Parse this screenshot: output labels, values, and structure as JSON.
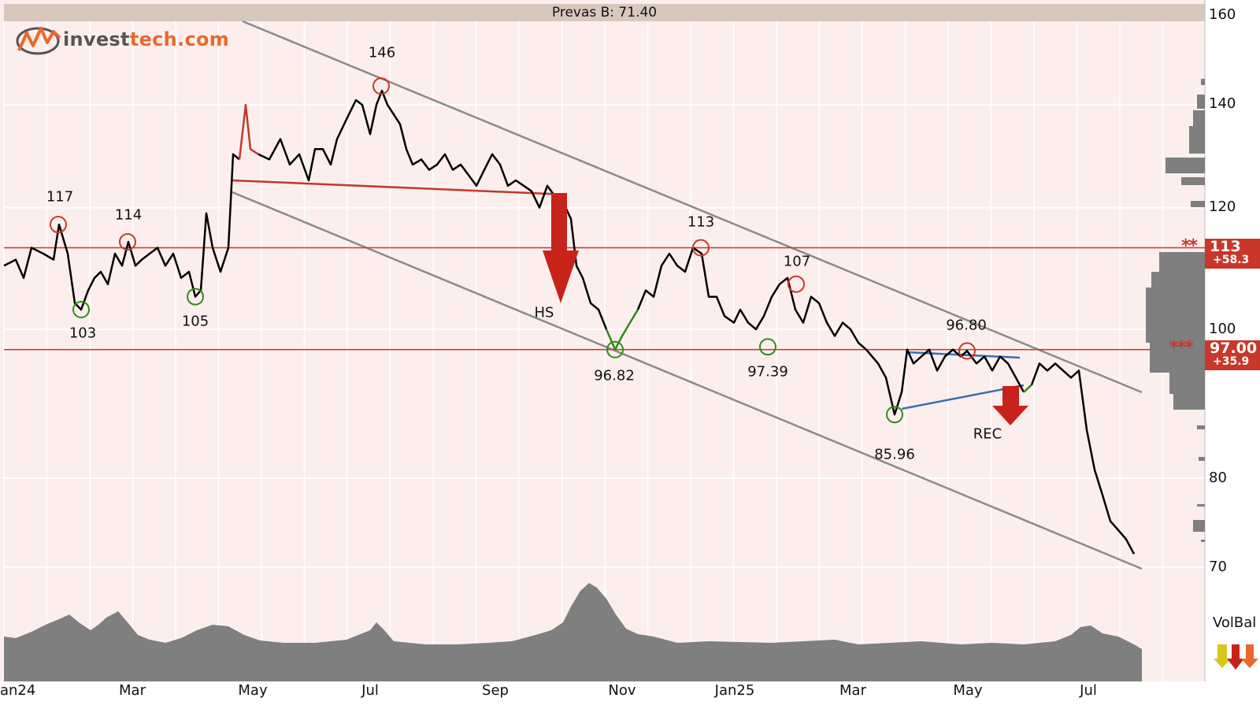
{
  "title": "Prevas B: 71.40",
  "logo": {
    "part1": "invest",
    "part2": "tech.com"
  },
  "chart_data": {
    "type": "line",
    "series": [
      {
        "x": [
          "2024-01",
          "2024-02",
          "2024-03",
          "2024-04",
          "2024-05",
          "2024-06",
          "2024-07",
          "2024-08",
          "2024-09",
          "2024-10",
          "2024-11",
          "2024-12",
          "2025-01",
          "2025-02",
          "2025-03",
          "2025-04",
          "2025-05",
          "2025-06",
          "2025-07"
        ],
        "values": [
          110,
          108,
          111,
          108,
          126,
          130,
          138,
          128,
          124,
          115,
          98,
          106,
          104,
          102,
          96,
          92,
          94,
          92,
          71.4
        ]
      }
    ],
    "x_ticks": [
      "Jan24",
      "Mar",
      "May",
      "Jul",
      "Sep",
      "Nov",
      "Jan25",
      "Mar",
      "May",
      "Jul"
    ],
    "y_ticks": [
      160,
      140,
      120,
      100,
      80,
      70
    ],
    "ylim": [
      70,
      160
    ],
    "scale": "log",
    "grid": true,
    "peak_labels": [
      "117",
      "114",
      "146",
      "113",
      "107",
      "96.80"
    ],
    "trough_labels": [
      "103",
      "105",
      "96.82",
      "97.39",
      "85.96"
    ],
    "patterns": [
      "HS",
      "REC"
    ],
    "horizontal_levels": [
      {
        "price": "113",
        "change": "+58.3",
        "stars": "**"
      },
      {
        "price": "97.00",
        "change": "+35.9",
        "stars": "***"
      }
    ],
    "volume_label": "VolBal"
  },
  "colors": {
    "background": "#fdeeee",
    "line": "#000000",
    "up_segment": "#c0392b",
    "down_segment": "#2e8b16",
    "channel": "#8a8a8a",
    "support": "#c8372a",
    "rectangle": "#3b6fb0",
    "arrow": "#c8231a",
    "volume": "#7f7f7f"
  }
}
